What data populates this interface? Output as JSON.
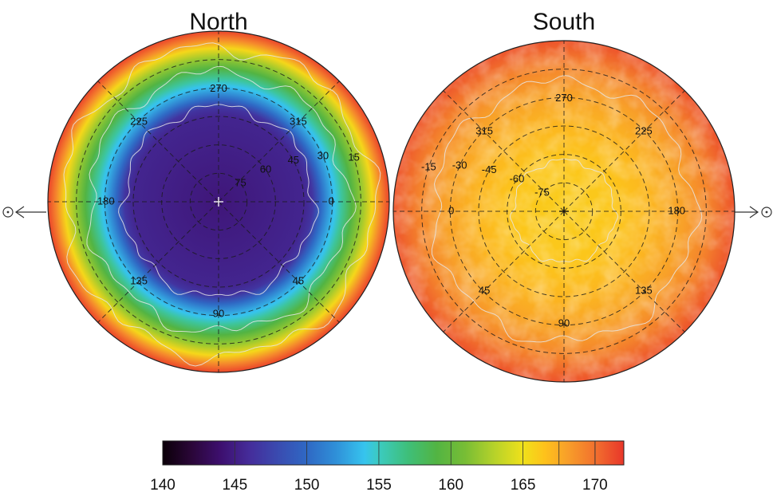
{
  "chart_data": {
    "type": "heatmap",
    "colorbar": {
      "ticks": [
        140,
        145,
        150,
        155,
        160,
        165,
        170
      ],
      "range": [
        140,
        172
      ],
      "colors": [
        [
          140,
          "#0b0008"
        ],
        [
          142,
          "#2a0638"
        ],
        [
          144,
          "#3d0f6e"
        ],
        [
          146,
          "#452c9a"
        ],
        [
          148,
          "#3a4bb0"
        ],
        [
          150,
          "#2f68c4"
        ],
        [
          152,
          "#2f8fd8"
        ],
        [
          154,
          "#36c4ee"
        ],
        [
          155,
          "#3ccbc0"
        ],
        [
          157,
          "#3ebf7a"
        ],
        [
          159,
          "#52b443"
        ],
        [
          161,
          "#78bd35"
        ],
        [
          163,
          "#b6d22a"
        ],
        [
          165,
          "#f0e11a"
        ],
        [
          166.5,
          "#fec21b"
        ],
        [
          168,
          "#f8a129"
        ],
        [
          170,
          "#f2712e"
        ],
        [
          172,
          "#e8362a"
        ]
      ]
    },
    "panels": [
      {
        "title": "North",
        "hemisphere": "north",
        "colatitude_profile": [
          [
            0,
            144.5
          ],
          [
            0.5,
            145.5
          ],
          [
            0.55,
            146.5
          ],
          [
            0.6,
            150
          ],
          [
            0.68,
            154
          ],
          [
            0.72,
            156
          ],
          [
            0.78,
            159
          ],
          [
            0.84,
            162
          ],
          [
            0.9,
            165.5
          ],
          [
            0.95,
            169
          ],
          [
            1.0,
            171.5
          ]
        ],
        "contour_levels": [
          147,
          158,
          166
        ],
        "latitude_labels": [
          "75",
          "60",
          "45",
          "30",
          "15"
        ],
        "meridian_labels": [
          "270",
          "315",
          "0",
          "45",
          "90",
          "135",
          "180",
          "225"
        ],
        "sun_direction": "left"
      },
      {
        "title": "South",
        "hemisphere": "south",
        "colatitude_profile": [
          [
            0,
            166
          ],
          [
            0.3,
            166.3
          ],
          [
            0.5,
            167
          ],
          [
            0.7,
            168
          ],
          [
            0.85,
            169.2
          ],
          [
            1.0,
            171
          ]
        ],
        "contour_levels": [
          166.3,
          168.5
        ],
        "latitude_labels": [
          "-75",
          "-60",
          "-45",
          "-30",
          "-15"
        ],
        "meridian_labels": [
          "270",
          "225",
          "180",
          "135",
          "90",
          "45",
          "0",
          "315"
        ],
        "sun_direction": "right"
      }
    ]
  },
  "colors": {
    "grid_line": "#1a1a1a",
    "contour": "#e6e6e6",
    "outline": "#222222"
  },
  "icons": {
    "sun_left": "sun-direction-arrow-icon",
    "sun_right": "sun-direction-arrow-icon"
  }
}
